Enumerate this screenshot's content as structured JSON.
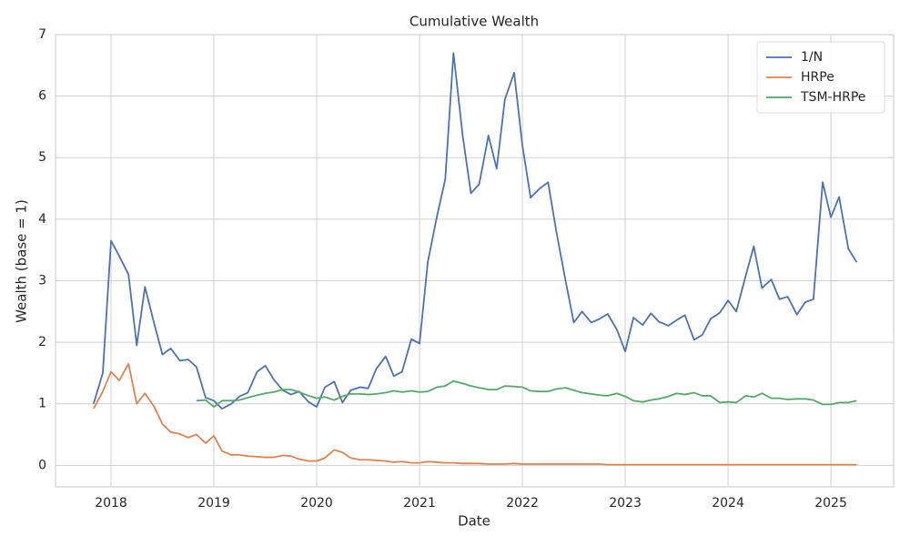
{
  "chart_data": {
    "type": "line",
    "title": "Cumulative Wealth",
    "x_label": "Date",
    "y_label": "Wealth (base = 1)",
    "x": [
      2017.83,
      2017.92,
      2018.0,
      2018.08,
      2018.17,
      2018.25,
      2018.33,
      2018.42,
      2018.5,
      2018.58,
      2018.67,
      2018.75,
      2018.83,
      2018.92,
      2019.0,
      2019.08,
      2019.17,
      2019.25,
      2019.33,
      2019.42,
      2019.5,
      2019.58,
      2019.67,
      2019.75,
      2019.83,
      2019.92,
      2020.0,
      2020.08,
      2020.17,
      2020.25,
      2020.33,
      2020.42,
      2020.5,
      2020.58,
      2020.67,
      2020.75,
      2020.83,
      2020.92,
      2021.0,
      2021.08,
      2021.17,
      2021.25,
      2021.33,
      2021.42,
      2021.5,
      2021.58,
      2021.67,
      2021.75,
      2021.83,
      2021.92,
      2022.0,
      2022.08,
      2022.17,
      2022.25,
      2022.33,
      2022.42,
      2022.5,
      2022.58,
      2022.67,
      2022.75,
      2022.83,
      2022.92,
      2023.0,
      2023.08,
      2023.17,
      2023.25,
      2023.33,
      2023.42,
      2023.5,
      2023.58,
      2023.67,
      2023.75,
      2023.83,
      2023.92,
      2024.0,
      2024.08,
      2024.17,
      2024.25,
      2024.33,
      2024.42,
      2024.5,
      2024.58,
      2024.67,
      2024.75,
      2024.83,
      2024.92,
      2025.0,
      2025.08,
      2025.17,
      2025.25
    ],
    "series": [
      {
        "name": "1/N",
        "color": "#4c72b0",
        "values": [
          1.0,
          1.5,
          3.65,
          3.4,
          3.1,
          1.95,
          2.9,
          2.3,
          1.8,
          1.9,
          1.7,
          1.72,
          1.6,
          1.1,
          1.05,
          0.92,
          1.0,
          1.12,
          1.18,
          1.52,
          1.62,
          1.4,
          1.22,
          1.15,
          1.2,
          1.03,
          0.95,
          1.27,
          1.36,
          1.02,
          1.22,
          1.27,
          1.25,
          1.57,
          1.77,
          1.45,
          1.52,
          2.05,
          1.98,
          3.3,
          4.05,
          4.65,
          6.7,
          5.35,
          4.42,
          4.57,
          5.36,
          4.82,
          5.95,
          6.38,
          5.2,
          4.35,
          4.5,
          4.6,
          3.8,
          3.0,
          2.32,
          2.5,
          2.32,
          2.38,
          2.46,
          2.2,
          1.85,
          2.4,
          2.28,
          2.47,
          2.33,
          2.27,
          2.36,
          2.44,
          2.04,
          2.12,
          2.38,
          2.48,
          2.68,
          2.5,
          3.07,
          3.56,
          2.88,
          3.02,
          2.7,
          2.74,
          2.45,
          2.65,
          2.7,
          4.6,
          4.03,
          4.36,
          3.52,
          3.3
        ]
      },
      {
        "name": "HRPe",
        "color": "#dd8452",
        "values": [
          0.92,
          1.2,
          1.52,
          1.38,
          1.65,
          1.0,
          1.17,
          0.95,
          0.67,
          0.54,
          0.51,
          0.45,
          0.5,
          0.36,
          0.48,
          0.23,
          0.17,
          0.17,
          0.15,
          0.14,
          0.13,
          0.13,
          0.16,
          0.15,
          0.1,
          0.07,
          0.07,
          0.12,
          0.25,
          0.21,
          0.12,
          0.09,
          0.09,
          0.08,
          0.07,
          0.05,
          0.06,
          0.04,
          0.04,
          0.06,
          0.05,
          0.04,
          0.04,
          0.03,
          0.03,
          0.03,
          0.02,
          0.02,
          0.02,
          0.03,
          0.02,
          0.02,
          0.02,
          0.02,
          0.02,
          0.02,
          0.02,
          0.02,
          0.02,
          0.02,
          0.01,
          0.01,
          0.01,
          0.01,
          0.01,
          0.01,
          0.01,
          0.01,
          0.01,
          0.01,
          0.01,
          0.01,
          0.01,
          0.01,
          0.01,
          0.01,
          0.01,
          0.01,
          0.01,
          0.01,
          0.01,
          0.01,
          0.01,
          0.01,
          0.01,
          0.01,
          0.01,
          0.01,
          0.01,
          0.01
        ]
      },
      {
        "name": "TSM-HRPe",
        "color": "#55a868",
        "values": [
          null,
          null,
          null,
          null,
          null,
          null,
          null,
          null,
          null,
          null,
          null,
          null,
          1.05,
          1.06,
          0.95,
          1.05,
          1.05,
          1.06,
          1.1,
          1.14,
          1.17,
          1.19,
          1.23,
          1.23,
          1.19,
          1.13,
          1.09,
          1.11,
          1.06,
          1.12,
          1.16,
          1.16,
          1.15,
          1.16,
          1.18,
          1.21,
          1.19,
          1.21,
          1.19,
          1.2,
          1.27,
          1.29,
          1.37,
          1.33,
          1.29,
          1.26,
          1.23,
          1.23,
          1.29,
          1.28,
          1.27,
          1.21,
          1.2,
          1.2,
          1.24,
          1.26,
          1.22,
          1.18,
          1.16,
          1.14,
          1.13,
          1.17,
          1.12,
          1.05,
          1.03,
          1.06,
          1.08,
          1.12,
          1.17,
          1.15,
          1.18,
          1.13,
          1.13,
          1.02,
          1.03,
          1.02,
          1.13,
          1.11,
          1.17,
          1.09,
          1.09,
          1.07,
          1.08,
          1.08,
          1.06,
          0.99,
          0.99,
          1.02,
          1.02,
          1.05
        ]
      }
    ],
    "xlim": [
      2017.46,
      2025.61
    ],
    "xticks": [
      2018,
      2019,
      2020,
      2021,
      2022,
      2023,
      2024,
      2025
    ],
    "ylim": [
      -0.35,
      7.0
    ],
    "yticks": [
      0,
      1,
      2,
      3,
      4,
      5,
      6,
      7
    ],
    "grid": true,
    "legend": "upper right"
  }
}
